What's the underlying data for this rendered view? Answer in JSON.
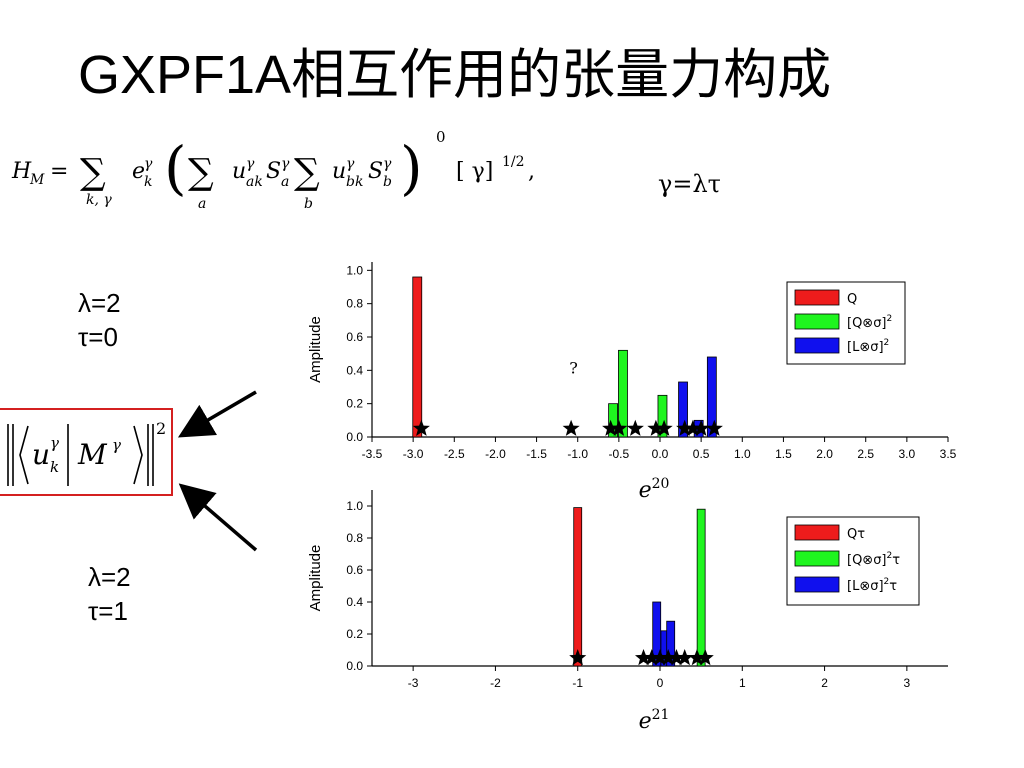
{
  "slide": {
    "title": "GXPF1A相互作用的张量力构成",
    "gamma_def": "γ=λτ",
    "params_top": {
      "lambda": "λ=2",
      "tau": "τ=0"
    },
    "params_bottom": {
      "lambda": "λ=2",
      "tau": "τ=1"
    },
    "formula": {
      "lhs": "H",
      "lhs_sub": "M",
      "sum_sub_1": "k, γ",
      "sum_sub_2": "a",
      "sum_sub_3": "b",
      "sup_gamma": "γ",
      "outer_sup": "0",
      "tail": "[ γ]",
      "tail_sup": "1/2",
      "tail_end": ","
    },
    "matrix_element": {
      "u": "u",
      "u_sub": "k",
      "u_sup": "γ",
      "M": "M",
      "M_sup": "γ",
      "power": "2"
    }
  },
  "colors": {
    "red": "#ee1c1c",
    "green": "#1ff51f",
    "blue": "#1010ee",
    "frame": "#d42020"
  },
  "chart_data": [
    {
      "type": "bar",
      "xlabel": "e",
      "xlabel_sup": "20",
      "ylabel": "Amplitude",
      "xlim": [
        -3.5,
        3.5
      ],
      "ylim": [
        0,
        1.05
      ],
      "xticks": [
        "-3.5",
        "-3.0",
        "-2.5",
        "-2.0",
        "-1.5",
        "-1.0",
        "-0.5",
        "0.0",
        "0.5",
        "1.0",
        "1.5",
        "2.0",
        "2.5",
        "3.0",
        "3.5"
      ],
      "yticks": [
        "0.0",
        "0.2",
        "0.4",
        "0.6",
        "0.8",
        "1.0"
      ],
      "legend_position": "top-right",
      "annotation": "?",
      "annotation_at": [
        -1.05,
        0.38
      ],
      "series": [
        {
          "name": "Q",
          "color": "red",
          "x": [
            -2.95
          ],
          "values": [
            0.96
          ]
        },
        {
          "name": "[Q⊗σ]",
          "sup": "2",
          "color": "green",
          "x": [
            -0.57,
            -0.45,
            0.03
          ],
          "values": [
            0.2,
            0.52,
            0.25
          ]
        },
        {
          "name": "[L⊗σ]",
          "sup": "2",
          "color": "blue",
          "x": [
            0.28,
            0.47,
            0.63
          ],
          "values": [
            0.33,
            0.1,
            0.48
          ]
        }
      ],
      "stars": [
        -2.9,
        -1.08,
        -0.6,
        -0.5,
        -0.3,
        -0.05,
        0.05,
        0.3,
        0.4,
        0.5,
        0.66
      ]
    },
    {
      "type": "bar",
      "xlabel": "e",
      "xlabel_sup": "21",
      "ylabel": "Amplitude",
      "xlim": [
        -3.5,
        3.5
      ],
      "ylim": [
        0,
        1.1
      ],
      "xticks": [
        "-3",
        "-2",
        "-1",
        "0",
        "1",
        "2",
        "3"
      ],
      "yticks": [
        "0.0",
        "0.2",
        "0.4",
        "0.6",
        "0.8",
        "1.0"
      ],
      "legend_position": "top-right",
      "series": [
        {
          "name": "Qτ",
          "color": "red",
          "x": [
            -1.0
          ],
          "values": [
            0.99
          ]
        },
        {
          "name": "[Q⊗σ]",
          "sup": "2",
          "suffix": "τ",
          "color": "green",
          "x": [
            0.5
          ],
          "values": [
            0.98
          ]
        },
        {
          "name": "[L⊗σ]",
          "sup": "2",
          "suffix": "τ",
          "color": "blue",
          "x": [
            -0.04,
            0.06,
            0.13
          ],
          "values": [
            0.4,
            0.22,
            0.28
          ]
        }
      ],
      "stars": [
        -1.0,
        -0.2,
        -0.1,
        0.0,
        0.1,
        0.2,
        0.3,
        0.45,
        0.55
      ]
    }
  ]
}
